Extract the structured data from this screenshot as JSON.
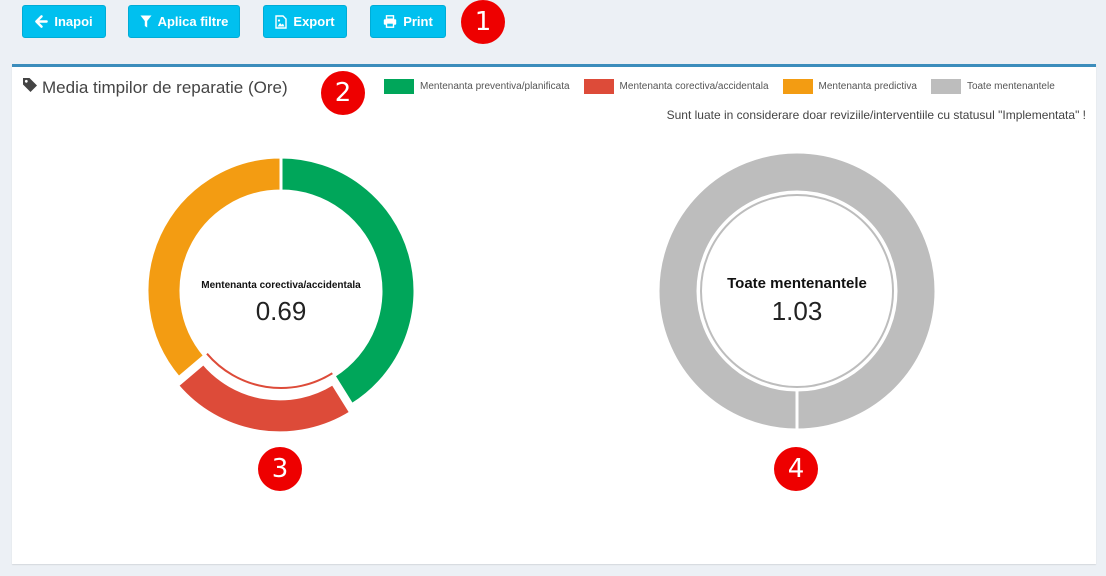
{
  "toolbar": {
    "back_label": "Inapoi",
    "filter_label": "Aplica filtre",
    "export_label": "Export",
    "print_label": "Print"
  },
  "badges": [
    "1",
    "2",
    "3",
    "4"
  ],
  "panel": {
    "title": "Media timpilor de reparatie (Ore)",
    "note": "Sunt luate in considerare doar reviziile/interventiile cu statusul \"Implementata\" !"
  },
  "legend": [
    {
      "label": "Mentenanta preventiva/planificata",
      "color": "#00a65a"
    },
    {
      "label": "Mentenanta corectiva/accidentala",
      "color": "#dd4b39"
    },
    {
      "label": "Mentenanta predictiva",
      "color": "#f39c12"
    },
    {
      "label": "Toate mentenantele",
      "color": "#bdbdbd"
    }
  ],
  "chart_data": [
    {
      "type": "pie",
      "variant": "doughnut",
      "categories": [
        "Mentenanta preventiva/planificata",
        "Mentenanta corectiva/accidentala",
        "Mentenanta predictiva"
      ],
      "values": [
        1.25,
        0.69,
        1.1
      ],
      "colors": [
        "#00a65a",
        "#dd4b39",
        "#f39c12"
      ],
      "highlighted": "Mentenanta corectiva/accidentala",
      "center_label": "Mentenanta corectiva/accidentala",
      "center_value": "0.69"
    },
    {
      "type": "pie",
      "variant": "doughnut",
      "categories": [
        "Toate mentenantele"
      ],
      "values": [
        1.03
      ],
      "colors": [
        "#bdbdbd"
      ],
      "center_label": "Toate mentenantele",
      "center_value": "1.03"
    }
  ]
}
